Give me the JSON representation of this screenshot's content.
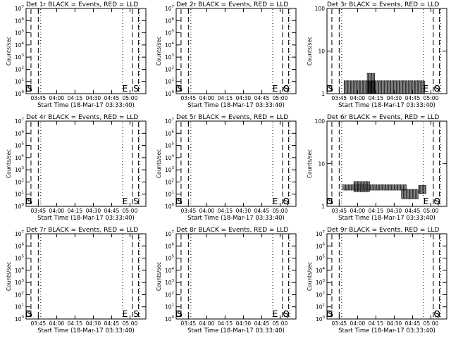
{
  "chart_data": [
    {
      "type": "line",
      "title": "Det 1r BLACK = Events, RED = LLD",
      "xlabel": "Start Time (18-Mar-17 03:33:40)",
      "ylabel": "Counts/sec",
      "xlim": [
        "03:35",
        "05:13"
      ],
      "x_tick_labels": [
        "03:45",
        "04:00",
        "04:15",
        "04:30",
        "04:45",
        "05:00"
      ],
      "y_scale": "log",
      "ylim": [
        1,
        10000000
      ],
      "y_tick_labels": [
        "10^0",
        "10^1",
        "10^2",
        "10^3",
        "10^4",
        "10^5",
        "10^6",
        "10^7"
      ],
      "markers": [
        {
          "type": "dashed",
          "time": "03:39"
        },
        {
          "type": "dashed",
          "time": "03:45"
        },
        {
          "type": "dotted",
          "time": "03:47"
        },
        {
          "type": "dotted",
          "time": "04:54"
        },
        {
          "type": "dashed",
          "time": "05:02"
        },
        {
          "type": "dashed",
          "time": "05:07"
        },
        {
          "type": "dotted",
          "time": "05:08"
        }
      ],
      "annotations": [
        {
          "text": "D",
          "time": "03:37"
        },
        {
          "text": "S",
          "time": "03:38"
        },
        {
          "text": "E",
          "time": "04:56"
        },
        {
          "text": "S",
          "time": "05:05"
        }
      ],
      "series": []
    },
    {
      "type": "line",
      "title": "Det 2r BLACK = Events, RED = LLD",
      "xlabel": "Start Time (18-Mar-17 03:33:40)",
      "ylabel": "Counts/sec",
      "xlim": [
        "03:35",
        "05:13"
      ],
      "x_tick_labels": [
        "03:45",
        "04:00",
        "04:15",
        "04:30",
        "04:45",
        "05:00"
      ],
      "y_scale": "log",
      "ylim": [
        1,
        10000000
      ],
      "y_tick_labels": [
        "10^0",
        "10^1",
        "10^2",
        "10^3",
        "10^4",
        "10^5",
        "10^6",
        "10^7"
      ],
      "markers": [
        {
          "type": "dashed",
          "time": "03:39"
        },
        {
          "type": "dashed",
          "time": "03:45"
        },
        {
          "type": "dotted",
          "time": "03:47"
        },
        {
          "type": "dotted",
          "time": "04:54"
        },
        {
          "type": "dashed",
          "time": "05:02"
        },
        {
          "type": "dashed",
          "time": "05:07"
        },
        {
          "type": "dotted",
          "time": "05:08"
        }
      ],
      "annotations": [
        {
          "text": "D",
          "time": "03:37"
        },
        {
          "text": "S",
          "time": "03:38"
        },
        {
          "text": "E",
          "time": "04:56"
        },
        {
          "text": "Q",
          "time": "05:05"
        },
        {
          "text": "S",
          "time": "05:05"
        }
      ],
      "series": []
    },
    {
      "type": "line",
      "title": "Det 3r BLACK = Events, RED = LLD",
      "xlabel": "Start Time (18-Mar-17 03:33:40)",
      "ylabel": "Counts/sec",
      "xlim": [
        "03:35",
        "05:13"
      ],
      "x_tick_labels": [
        "03:45",
        "04:00",
        "04:15",
        "04:30",
        "04:45",
        "05:00"
      ],
      "y_scale": "log",
      "ylim": [
        1,
        100
      ],
      "y_tick_labels": [
        "1",
        "10",
        "100"
      ],
      "markers": [
        {
          "type": "dashed",
          "time": "03:39"
        },
        {
          "type": "dashed",
          "time": "03:45"
        },
        {
          "type": "dotted",
          "time": "03:47"
        },
        {
          "type": "dotted",
          "time": "04:54"
        },
        {
          "type": "dashed",
          "time": "05:02"
        },
        {
          "type": "dashed",
          "time": "05:07"
        },
        {
          "type": "dotted",
          "time": "05:08"
        }
      ],
      "annotations": [
        {
          "text": "D",
          "time": "03:37"
        },
        {
          "text": "S",
          "time": "03:38"
        },
        {
          "text": "E",
          "time": "04:56"
        },
        {
          "text": "Q",
          "time": "05:05"
        },
        {
          "text": "S",
          "time": "05:05"
        }
      ],
      "series": [
        {
          "segments": [
            {
              "t": [
                "03:49",
                "04:55"
              ],
              "lo": 1,
              "hi": 2
            },
            {
              "t": [
                "04:08",
                "04:14"
              ],
              "lo": 1,
              "hi": 3
            }
          ]
        }
      ]
    },
    {
      "type": "line",
      "title": "Det 4r BLACK = Events, RED = LLD",
      "xlabel": "Start Time (18-Mar-17 03:33:40)",
      "ylabel": "Counts/sec",
      "xlim": [
        "03:35",
        "05:13"
      ],
      "x_tick_labels": [
        "03:45",
        "04:00",
        "04:15",
        "04:30",
        "04:45",
        "05:00"
      ],
      "y_scale": "log",
      "ylim": [
        1,
        10000000
      ],
      "y_tick_labels": [
        "10^0",
        "10^1",
        "10^2",
        "10^3",
        "10^4",
        "10^5",
        "10^6",
        "10^7"
      ],
      "markers": [
        {
          "type": "dashed",
          "time": "03:39"
        },
        {
          "type": "dashed",
          "time": "03:45"
        },
        {
          "type": "dotted",
          "time": "03:47"
        },
        {
          "type": "dotted",
          "time": "04:54"
        },
        {
          "type": "dashed",
          "time": "05:02"
        },
        {
          "type": "dashed",
          "time": "05:07"
        },
        {
          "type": "dotted",
          "time": "05:08"
        }
      ],
      "annotations": [
        {
          "text": "D",
          "time": "03:37"
        },
        {
          "text": "S",
          "time": "03:38"
        },
        {
          "text": "E",
          "time": "04:56"
        },
        {
          "text": "S",
          "time": "05:05"
        }
      ],
      "series": []
    },
    {
      "type": "line",
      "title": "Det 5r BLACK = Events, RED = LLD",
      "xlabel": "Start Time (18-Mar-17 03:33:40)",
      "ylabel": "Counts/sec",
      "xlim": [
        "03:35",
        "05:13"
      ],
      "x_tick_labels": [
        "03:45",
        "04:00",
        "04:15",
        "04:30",
        "04:45",
        "05:00"
      ],
      "y_scale": "log",
      "ylim": [
        1,
        10000000
      ],
      "y_tick_labels": [
        "10^0",
        "10^1",
        "10^2",
        "10^3",
        "10^4",
        "10^5",
        "10^6",
        "10^7"
      ],
      "markers": [
        {
          "type": "dashed",
          "time": "03:39"
        },
        {
          "type": "dashed",
          "time": "03:45"
        },
        {
          "type": "dotted",
          "time": "03:47"
        },
        {
          "type": "dotted",
          "time": "04:54"
        },
        {
          "type": "dashed",
          "time": "05:02"
        },
        {
          "type": "dashed",
          "time": "05:07"
        },
        {
          "type": "dotted",
          "time": "05:08"
        }
      ],
      "annotations": [
        {
          "text": "D",
          "time": "03:37"
        },
        {
          "text": "S",
          "time": "03:38"
        },
        {
          "text": "E",
          "time": "04:56"
        },
        {
          "text": "Q",
          "time": "05:05"
        },
        {
          "text": "S",
          "time": "05:05"
        }
      ],
      "series": []
    },
    {
      "type": "line",
      "title": "Det 6r BLACK = Events, RED = LLD",
      "xlabel": "Start Time (18-Mar-17 03:33:40)",
      "ylabel": "Counts/sec",
      "xlim": [
        "03:35",
        "05:13"
      ],
      "x_tick_labels": [
        "03:45",
        "04:00",
        "04:15",
        "04:30",
        "04:45",
        "05:00"
      ],
      "y_scale": "log",
      "ylim": [
        1,
        100
      ],
      "y_tick_labels": [
        "1",
        "10",
        "100"
      ],
      "markers": [
        {
          "type": "dashed",
          "time": "03:39"
        },
        {
          "type": "dashed",
          "time": "03:45"
        },
        {
          "type": "dotted",
          "time": "03:47"
        },
        {
          "type": "dotted",
          "time": "04:54"
        },
        {
          "type": "dashed",
          "time": "05:02"
        },
        {
          "type": "dashed",
          "time": "05:07"
        },
        {
          "type": "dotted",
          "time": "05:08"
        }
      ],
      "annotations": [
        {
          "text": "D",
          "time": "03:37"
        },
        {
          "text": "S",
          "time": "03:38"
        },
        {
          "text": "E",
          "time": "04:56"
        },
        {
          "text": "Q",
          "time": "05:05"
        },
        {
          "text": "S",
          "time": "05:05"
        }
      ],
      "series": [
        {
          "segments": [
            {
              "t": [
                "03:48",
                "04:40"
              ],
              "lo": 2.4,
              "hi": 3.2
            },
            {
              "t": [
                "03:57",
                "04:10"
              ],
              "lo": 2.2,
              "hi": 3.8
            },
            {
              "t": [
                "04:36",
                "04:50"
              ],
              "lo": 1.5,
              "hi": 2.5
            },
            {
              "t": [
                "04:50",
                "04:56"
              ],
              "lo": 2,
              "hi": 3.1
            }
          ]
        }
      ]
    },
    {
      "type": "line",
      "title": "Det 7r BLACK = Events, RED = LLD",
      "xlabel": "Start Time (18-Mar-17 03:33:40)",
      "ylabel": "Counts/sec",
      "xlim": [
        "03:35",
        "05:13"
      ],
      "x_tick_labels": [
        "03:45",
        "04:00",
        "04:15",
        "04:30",
        "04:45",
        "05:00"
      ],
      "y_scale": "log",
      "ylim": [
        1,
        10000000
      ],
      "y_tick_labels": [
        "10^0",
        "10^1",
        "10^2",
        "10^3",
        "10^4",
        "10^5",
        "10^6",
        "10^7"
      ],
      "markers": [
        {
          "type": "dashed",
          "time": "03:39"
        },
        {
          "type": "dashed",
          "time": "03:45"
        },
        {
          "type": "dotted",
          "time": "03:47"
        },
        {
          "type": "dotted",
          "time": "04:54"
        },
        {
          "type": "dashed",
          "time": "05:02"
        },
        {
          "type": "dashed",
          "time": "05:07"
        },
        {
          "type": "dotted",
          "time": "05:08"
        }
      ],
      "annotations": [
        {
          "text": "D",
          "time": "03:37"
        },
        {
          "text": "S",
          "time": "03:38"
        },
        {
          "text": "E",
          "time": "04:56"
        },
        {
          "text": "S",
          "time": "05:05"
        }
      ],
      "series": []
    },
    {
      "type": "line",
      "title": "Det 8r BLACK = Events, RED = LLD",
      "xlabel": "Start Time (18-Mar-17 03:33:40)",
      "ylabel": "Counts/sec",
      "xlim": [
        "03:35",
        "05:13"
      ],
      "x_tick_labels": [
        "03:45",
        "04:00",
        "04:15",
        "04:30",
        "04:45",
        "05:00"
      ],
      "y_scale": "log",
      "ylim": [
        1,
        10000000
      ],
      "y_tick_labels": [
        "10^0",
        "10^1",
        "10^2",
        "10^3",
        "10^4",
        "10^5",
        "10^6",
        "10^7"
      ],
      "markers": [
        {
          "type": "dashed",
          "time": "03:39"
        },
        {
          "type": "dashed",
          "time": "03:45"
        },
        {
          "type": "dotted",
          "time": "03:47"
        },
        {
          "type": "dotted",
          "time": "04:54"
        },
        {
          "type": "dashed",
          "time": "05:02"
        },
        {
          "type": "dashed",
          "time": "05:07"
        },
        {
          "type": "dotted",
          "time": "05:08"
        }
      ],
      "annotations": [
        {
          "text": "D",
          "time": "03:37"
        },
        {
          "text": "S",
          "time": "03:38"
        },
        {
          "text": "E",
          "time": "04:56"
        },
        {
          "text": "Q",
          "time": "05:05"
        },
        {
          "text": "S",
          "time": "05:05"
        }
      ],
      "series": []
    },
    {
      "type": "line",
      "title": "Det 9r BLACK = Events, RED = LLD",
      "xlabel": "Start Time (18-Mar-17 03:33:40)",
      "ylabel": "Counts/sec",
      "xlim": [
        "03:35",
        "05:13"
      ],
      "x_tick_labels": [
        "03:45",
        "04:00",
        "04:15",
        "04:30",
        "04:45",
        "05:00"
      ],
      "y_scale": "log",
      "ylim": [
        1,
        10000000
      ],
      "y_tick_labels": [
        "10^0",
        "10^1",
        "10^2",
        "10^3",
        "10^4",
        "10^5",
        "10^6",
        "10^7"
      ],
      "markers": [
        {
          "type": "dashed",
          "time": "03:39"
        },
        {
          "type": "dashed",
          "time": "03:45"
        },
        {
          "type": "dotted",
          "time": "03:47"
        },
        {
          "type": "dotted",
          "time": "04:54"
        },
        {
          "type": "dashed",
          "time": "05:02"
        },
        {
          "type": "dashed",
          "time": "05:07"
        },
        {
          "type": "dotted",
          "time": "05:08"
        }
      ],
      "annotations": [
        {
          "text": "D",
          "time": "03:37"
        },
        {
          "text": "S",
          "time": "03:38"
        },
        {
          "text": "Q",
          "time": "05:05"
        },
        {
          "text": "S",
          "time": "05:05"
        }
      ],
      "series": []
    }
  ]
}
